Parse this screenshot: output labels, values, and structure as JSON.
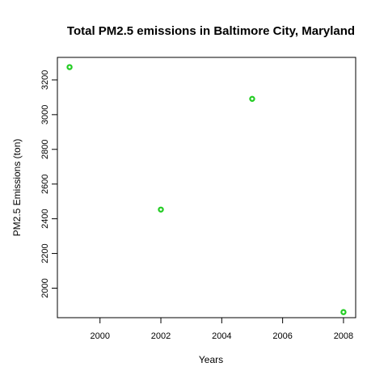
{
  "chart_data": {
    "type": "scatter",
    "title": "Total PM2.5 emissions in Baltimore City, Maryland",
    "xlabel": "Years",
    "ylabel": "PM2.5 Emissions (ton)",
    "xlim": [
      1998.6,
      2008.4
    ],
    "ylim": [
      1830,
      3330
    ],
    "xticks": [
      2000,
      2002,
      2004,
      2006,
      2008
    ],
    "yticks": [
      2000,
      2200,
      2400,
      2600,
      2800,
      3000,
      3200
    ],
    "grid": false,
    "marker_color": "#22cc22",
    "marker_shape": "open-circle",
    "points": [
      {
        "x": 1999,
        "y": 3274
      },
      {
        "x": 2002,
        "y": 2453
      },
      {
        "x": 2005,
        "y": 3091
      },
      {
        "x": 2008,
        "y": 1862
      }
    ]
  }
}
